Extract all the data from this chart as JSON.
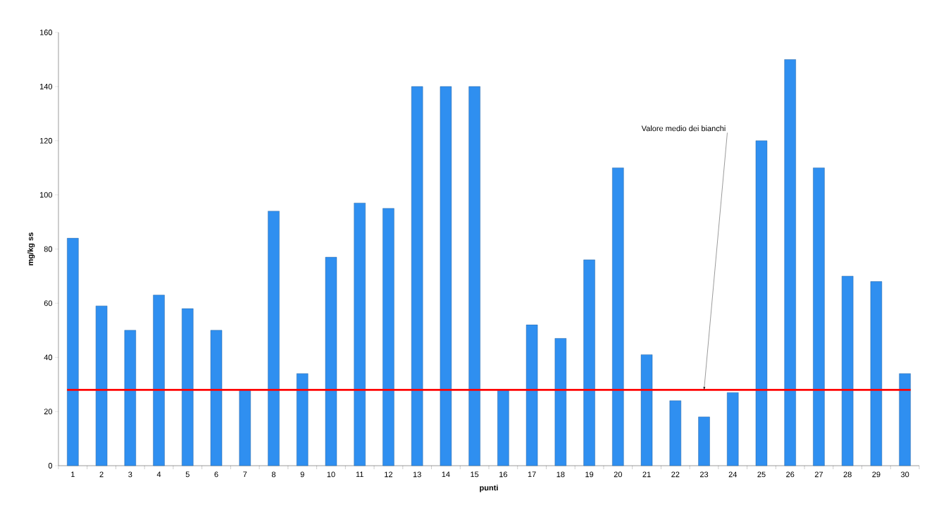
{
  "chart_data": {
    "type": "bar",
    "xlabel": "punti",
    "ylabel": "mg/kg ss",
    "categories": [
      "1",
      "2",
      "3",
      "4",
      "5",
      "6",
      "7",
      "8",
      "9",
      "10",
      "11",
      "12",
      "13",
      "14",
      "15",
      "16",
      "17",
      "18",
      "19",
      "20",
      "21",
      "22",
      "23",
      "24",
      "25",
      "26",
      "27",
      "28",
      "29",
      "30"
    ],
    "values": [
      84,
      59,
      50,
      63,
      58,
      50,
      28,
      94,
      34,
      77,
      97,
      95,
      140,
      140,
      140,
      28,
      52,
      47,
      76,
      110,
      41,
      24,
      18,
      27,
      120,
      150,
      110,
      70,
      68,
      34
    ],
    "color": "#2f8ff0",
    "ylim": [
      0,
      160
    ],
    "yticks": [
      0,
      20,
      40,
      60,
      80,
      100,
      120,
      140,
      160
    ],
    "grid": false,
    "ref_lines": [
      {
        "axis": "y",
        "value": 28,
        "color": "#ff0000"
      }
    ],
    "annotations": [
      {
        "text": "Valore medio dei bianchi",
        "x": "23",
        "y": 28
      }
    ]
  }
}
